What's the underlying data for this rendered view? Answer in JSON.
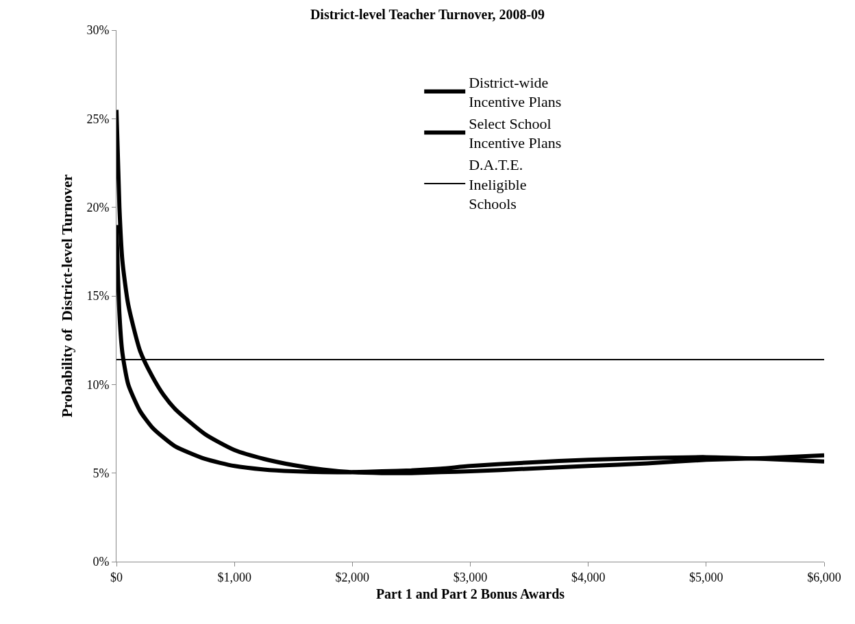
{
  "chart_data": {
    "type": "line",
    "title": "District-level Teacher Turnover, 2008-09",
    "xlabel": "Part 1 and Part 2 Bonus Awards",
    "ylabel": "Probability of  District-level Turnover",
    "x": [
      0,
      25,
      50,
      100,
      200,
      300,
      400,
      500,
      750,
      1000,
      1250,
      1500,
      1750,
      2000,
      2250,
      2500,
      2750,
      3000,
      3500,
      4000,
      4500,
      5000,
      5500,
      6000
    ],
    "series": [
      {
        "name": "District-wide Incentive Plans",
        "color": "#000000",
        "values": [
          25.5,
          20,
          17,
          14.5,
          11.9,
          10.5,
          9.4,
          8.6,
          7.2,
          6.3,
          5.8,
          5.45,
          5.2,
          5.05,
          5.0,
          5.0,
          5.05,
          5.1,
          5.25,
          5.4,
          5.55,
          5.75,
          5.85,
          6.0
        ]
      },
      {
        "name": "Select School Incentive Plans",
        "color": "#000000",
        "values": [
          19,
          14,
          11.8,
          10,
          8.5,
          7.6,
          7.0,
          6.5,
          5.8,
          5.4,
          5.2,
          5.1,
          5.05,
          5.05,
          5.1,
          5.15,
          5.25,
          5.4,
          5.6,
          5.75,
          5.85,
          5.9,
          5.8,
          5.65
        ]
      },
      {
        "name": "D.A.T.E. Ineligible Schools",
        "color": "#000000",
        "x": [
          0,
          6000
        ],
        "values": [
          11.4,
          11.4
        ]
      }
    ],
    "xlim": [
      0,
      6000
    ],
    "xticks": [
      {
        "value": 0,
        "label": "$0"
      },
      {
        "value": 1000,
        "label": "$1,000"
      },
      {
        "value": 2000,
        "label": "$2,000"
      },
      {
        "value": 3000,
        "label": "$3,000"
      },
      {
        "value": 4000,
        "label": "$4,000"
      },
      {
        "value": 5000,
        "label": "$5,000"
      },
      {
        "value": 6000,
        "label": "$6,000"
      }
    ],
    "ylim": [
      0,
      30
    ],
    "yticks": [
      {
        "value": 0,
        "label": "0%"
      },
      {
        "value": 5,
        "label": "5%"
      },
      {
        "value": 10,
        "label": "10%"
      },
      {
        "value": 15,
        "label": "15%"
      },
      {
        "value": 20,
        "label": "20%"
      },
      {
        "value": 25,
        "label": "25%"
      },
      {
        "value": 30,
        "label": "30%"
      }
    ],
    "legend": "top right",
    "marker": "none",
    "line_style": "solid",
    "grid": false
  }
}
